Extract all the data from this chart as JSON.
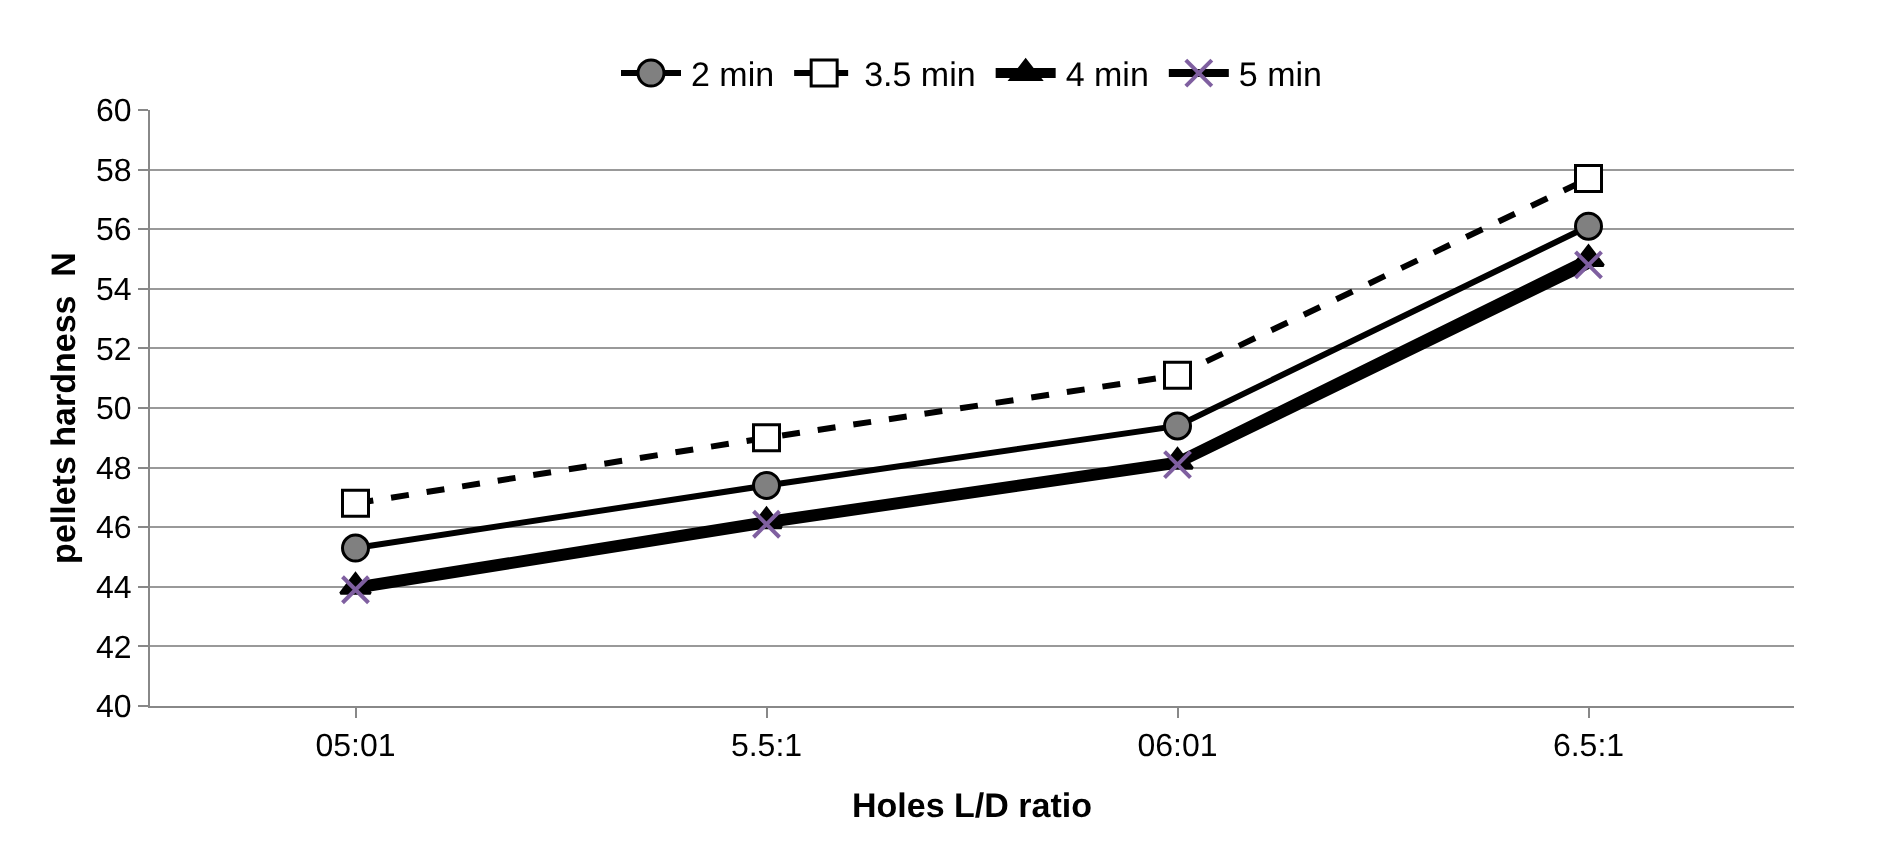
{
  "chart_data": {
    "type": "line",
    "xlabel": "Holes L/D ratio",
    "ylabel": "pellets hardness  N",
    "categories": [
      "05:01",
      "5.5:1",
      "06:01",
      "6.5:1"
    ],
    "series": [
      {
        "name": "2 min",
        "color": "#000000",
        "marker": "circle",
        "line_style": "solid",
        "values": [
          45.3,
          47.4,
          49.4,
          56.1
        ]
      },
      {
        "name": "3.5 min",
        "color": "#000000",
        "marker": "square",
        "line_style": "dashed",
        "values": [
          46.8,
          49.0,
          51.1,
          57.7
        ]
      },
      {
        "name": "4 min",
        "color": "#000000",
        "marker": "triangle",
        "line_style": "solid",
        "values": [
          44.0,
          46.2,
          48.2,
          55.0
        ]
      },
      {
        "name": "5 min",
        "color": "#000000",
        "marker": "cross",
        "line_style": "solid",
        "values": [
          43.9,
          46.1,
          48.1,
          54.8
        ]
      }
    ],
    "ylim": [
      40,
      60
    ],
    "yticks": [
      40,
      42,
      44,
      46,
      48,
      50,
      52,
      54,
      56,
      58,
      60
    ],
    "grid": "y",
    "legend": "top"
  }
}
